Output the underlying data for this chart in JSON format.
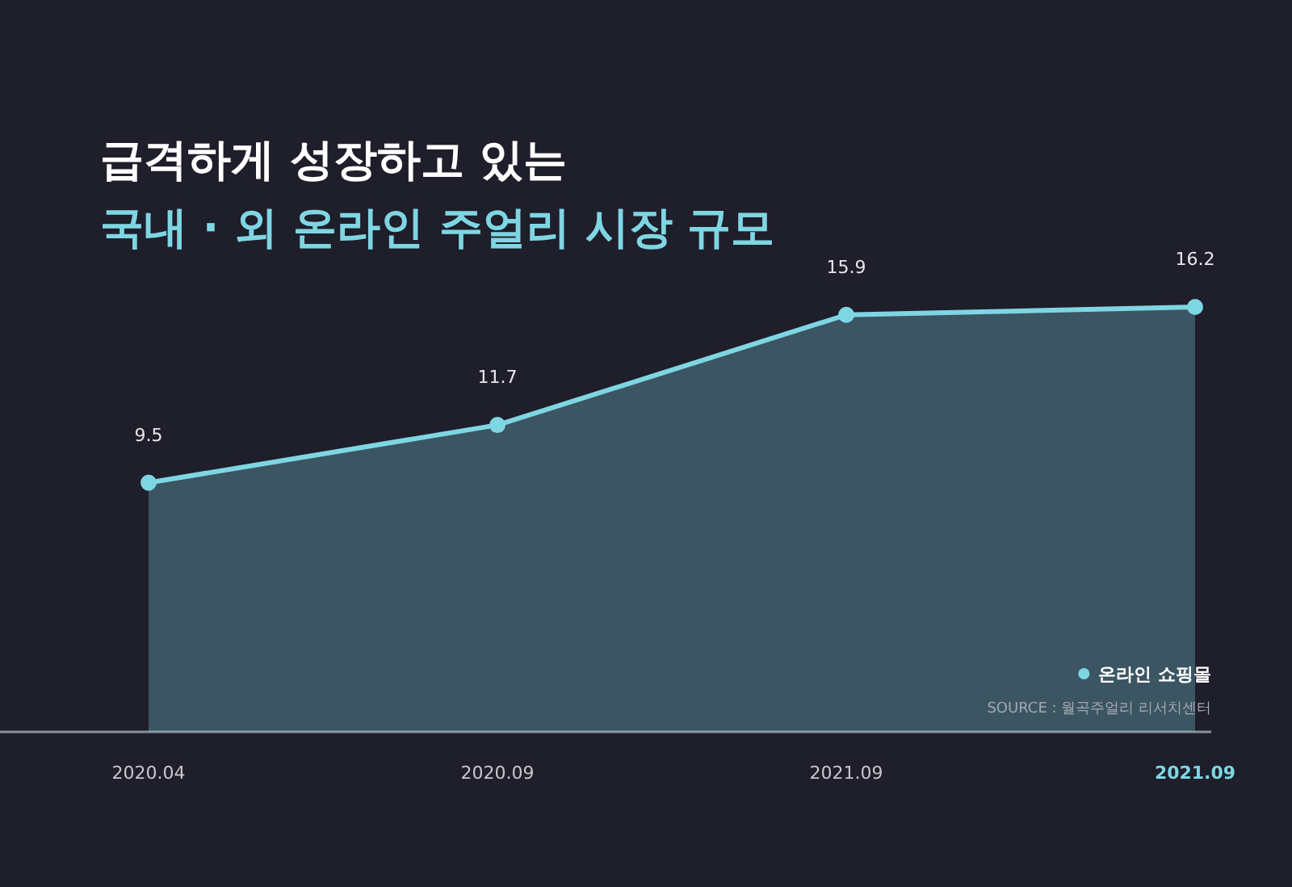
{
  "chart_data": {
    "type": "area",
    "title": "급격하게 성장하고 있는",
    "subtitle": "국내 · 외 온라인 주얼리 시장 규모",
    "categories": [
      "2020.04",
      "2020.09",
      "2021.09",
      "2021.09"
    ],
    "series": [
      {
        "name": "온라인 쇼핑몰",
        "color": "#7fd6e3",
        "values": [
          9.5,
          11.7,
          15.9,
          16.2
        ]
      }
    ],
    "data_labels": true,
    "marker": "circle",
    "legend": "bottom right",
    "grid": false,
    "annotations": [
      "SOURCE : 월곡주얼리 리서치센터"
    ]
  }
}
